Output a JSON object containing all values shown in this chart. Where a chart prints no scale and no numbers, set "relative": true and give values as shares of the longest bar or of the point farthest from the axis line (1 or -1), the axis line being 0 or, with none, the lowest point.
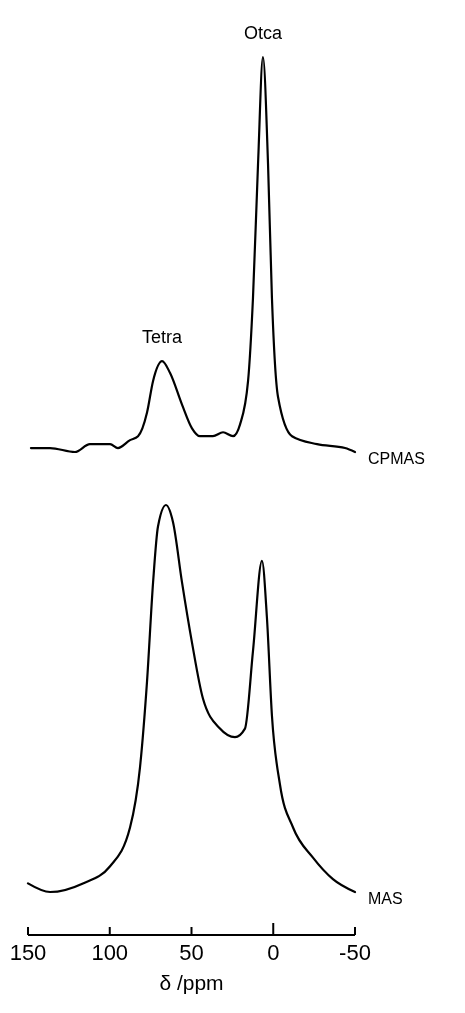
{
  "chart_data": [
    {
      "type": "line",
      "relative": true,
      "xlim": [
        150,
        -50
      ],
      "tick_labels": false,
      "annotations": [
        {
          "text": "Tetra",
          "x": 68,
          "y": 0.23
        },
        {
          "text": "Otca",
          "x": 6.3,
          "y": 1
        }
      ],
      "series": [
        {
          "name": "CPMAS",
          "color": "#000000",
          "x": [
            148.2,
            136.5,
            121.3,
            112.1,
            99.8,
            95.0,
            87.6,
            82.7,
            77.2,
            73.5,
            68.0,
            63.1,
            55.8,
            49.7,
            44.8,
            36.9,
            30.7,
            24.6,
            20.3,
            15.4,
            12.4,
            9.3,
            6.3,
            3.2,
            0.8,
            -2.9,
            -11.5,
            -26.8,
            -43.9,
            -50
          ],
          "values": [
            0.01,
            0.01,
            0,
            0.02,
            0.02,
            0.01,
            0.03,
            0.04,
            0.1,
            0.18,
            0.23,
            0.2,
            0.12,
            0.06,
            0.04,
            0.04,
            0.05,
            0.04,
            0.07,
            0.18,
            0.39,
            0.73,
            1,
            0.73,
            0.39,
            0.14,
            0.04,
            0.02,
            0.01,
            0
          ]
        }
      ]
    },
    {
      "type": "line",
      "relative": true,
      "xlim": [
        150,
        -50
      ],
      "xticks": [
        150,
        100,
        50,
        0,
        -50
      ],
      "xlabel": "δ /ppm",
      "tick_labels": "x",
      "series": [
        {
          "name": "MAS",
          "color": "#000000",
          "x": [
            150,
            136.5,
            116.4,
            99.8,
            87.6,
            81.5,
            77.2,
            73.5,
            70.5,
            65.6,
            61.3,
            55.8,
            49.7,
            43.0,
            32.6,
            23.4,
            17.3,
            12.4,
            6.9,
            3.9,
            0.8,
            -4.1,
            -12.1,
            -24.3,
            -36.5,
            -50
          ],
          "values": [
            0.12,
            0.1,
            0.12,
            0.16,
            0.25,
            0.39,
            0.59,
            0.82,
            0.95,
            1,
            0.96,
            0.82,
            0.68,
            0.55,
            0.48,
            0.46,
            0.48,
            0.66,
            0.87,
            0.74,
            0.51,
            0.35,
            0.25,
            0.18,
            0.13,
            0.1
          ]
        }
      ]
    }
  ]
}
